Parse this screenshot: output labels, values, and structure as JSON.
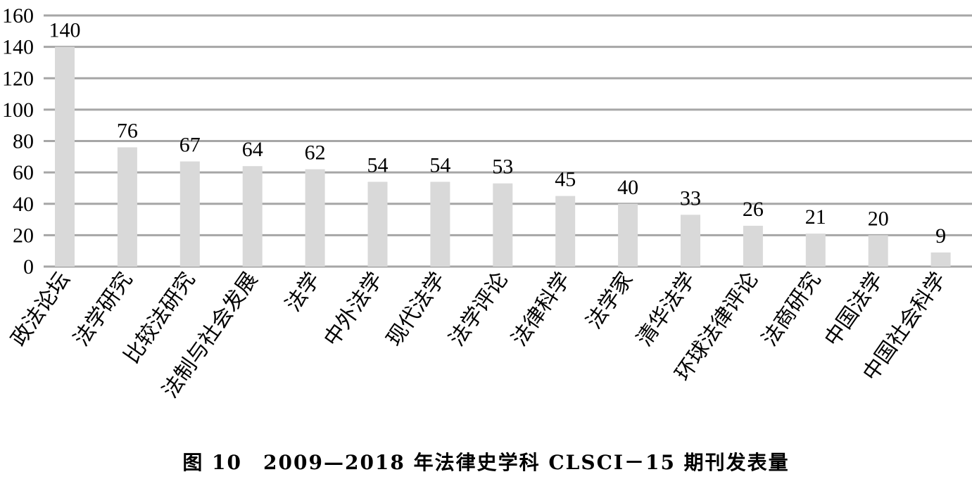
{
  "chart_data": {
    "type": "bar",
    "title": "图 10　2009—2018 年法律史学科 CLSCI－15 期刊发表量",
    "categories": [
      "政法论坛",
      "法学研究",
      "比较法研究",
      "法制与社会发展",
      "法学",
      "中外法学",
      "现代法学",
      "法学评论",
      "法律科学",
      "法学家",
      "清华法学",
      "环球法律评论",
      "法商研究",
      "中国法学",
      "中国社会科学"
    ],
    "values": [
      140,
      76,
      67,
      64,
      62,
      54,
      54,
      53,
      45,
      40,
      33,
      26,
      21,
      20,
      9
    ],
    "ylim": [
      0,
      160
    ],
    "yticks": [
      0,
      20,
      40,
      60,
      80,
      100,
      120,
      140,
      160
    ],
    "grid": true,
    "colors": {
      "bar": "#d9d9d9",
      "grid": "#a6a6a6"
    }
  }
}
